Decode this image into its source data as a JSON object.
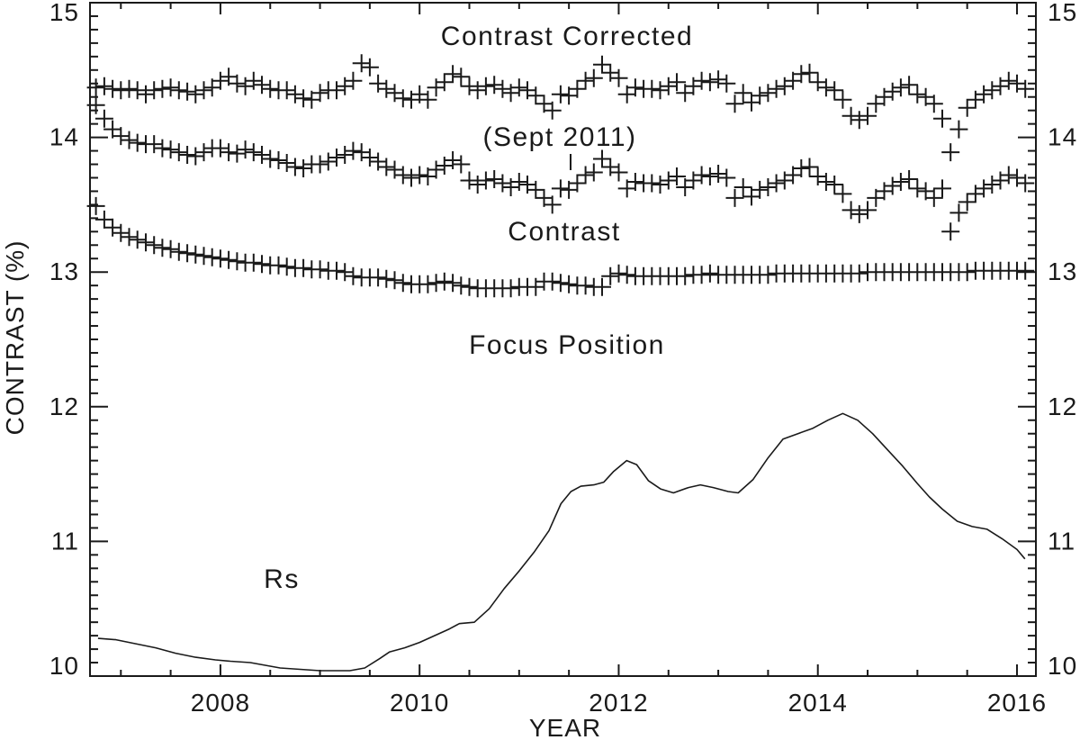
{
  "figure": {
    "background": "#ffffff",
    "line_color": "#1a1a1a"
  },
  "chart_data": {
    "type": "scatter",
    "title": "",
    "xlabel": "YEAR",
    "ylabel": "CONTRAST (%)",
    "x_range": [
      2006.69,
      2016.19
    ],
    "y_range": [
      10,
      15
    ],
    "grid": false,
    "legend_position": "none",
    "x_major_ticks": [
      {
        "v": 2008,
        "label": "2008"
      },
      {
        "v": 2010,
        "label": "2010"
      },
      {
        "v": 2012,
        "label": "2012"
      },
      {
        "v": 2014,
        "label": "2014"
      },
      {
        "v": 2016,
        "label": "2016"
      }
    ],
    "x_minor_step": 0.5,
    "y_major_ticks": [
      {
        "v": 10,
        "label": "10"
      },
      {
        "v": 11,
        "label": "11"
      },
      {
        "v": 12,
        "label": "12"
      },
      {
        "v": 13,
        "label": "13"
      },
      {
        "v": 14,
        "label": "14"
      },
      {
        "v": 15,
        "label": "15"
      }
    ],
    "y_minor_step": 0.1,
    "x_monthly": {
      "start": 2006.75,
      "step": 0.0833333,
      "count": 113
    },
    "series": [
      {
        "name": "Contrast Corrected",
        "marker": "plus",
        "values": [
          14.37,
          14.38,
          14.36,
          14.35,
          14.36,
          14.35,
          14.32,
          14.35,
          14.36,
          14.37,
          14.35,
          14.34,
          14.32,
          14.35,
          14.37,
          14.42,
          14.45,
          14.4,
          14.38,
          14.42,
          14.39,
          14.36,
          14.35,
          14.35,
          14.32,
          14.29,
          14.28,
          14.33,
          14.35,
          14.35,
          14.38,
          14.42,
          14.55,
          14.52,
          14.4,
          14.36,
          14.33,
          14.29,
          14.28,
          14.32,
          14.28,
          14.37,
          14.41,
          14.47,
          14.45,
          14.38,
          14.35,
          14.38,
          14.39,
          14.36,
          14.33,
          14.37,
          14.35,
          14.31,
          14.25,
          14.2,
          14.32,
          14.31,
          14.36,
          14.42,
          14.44,
          14.54,
          14.48,
          14.44,
          14.32,
          14.37,
          14.36,
          14.36,
          14.35,
          14.38,
          14.41,
          14.33,
          14.38,
          14.42,
          14.41,
          14.43,
          14.4,
          14.25,
          14.33,
          14.26,
          14.31,
          14.33,
          14.36,
          14.38,
          14.42,
          14.47,
          14.48,
          14.41,
          14.37,
          14.35,
          14.28,
          14.16,
          14.13,
          14.16,
          14.25,
          14.3,
          14.34,
          14.37,
          14.39,
          14.32,
          14.3,
          14.25,
          14.14,
          13.89,
          14.06,
          14.22,
          14.28,
          14.32,
          14.35,
          14.38,
          14.42,
          14.4,
          14.36
        ]
      },
      {
        "name": "Contrast",
        "marker": "plus",
        "values": [
          14.24,
          14.14,
          14.06,
          14.01,
          13.98,
          13.96,
          13.95,
          13.95,
          13.92,
          13.91,
          13.89,
          13.87,
          13.86,
          13.89,
          13.92,
          13.92,
          13.89,
          13.88,
          13.91,
          13.89,
          13.87,
          13.84,
          13.83,
          13.81,
          13.78,
          13.77,
          13.8,
          13.8,
          13.82,
          13.85,
          13.87,
          13.9,
          13.89,
          13.85,
          13.82,
          13.78,
          13.76,
          13.72,
          13.7,
          13.72,
          13.71,
          13.76,
          13.79,
          13.83,
          13.8,
          13.68,
          13.65,
          13.68,
          13.69,
          13.66,
          13.63,
          13.67,
          13.65,
          13.61,
          13.55,
          13.5,
          13.62,
          13.61,
          13.66,
          13.72,
          13.74,
          13.84,
          13.78,
          13.74,
          13.62,
          13.67,
          13.66,
          13.66,
          13.65,
          13.68,
          13.71,
          13.63,
          13.68,
          13.72,
          13.71,
          13.73,
          13.7,
          13.55,
          13.63,
          13.56,
          13.61,
          13.63,
          13.66,
          13.68,
          13.72,
          13.77,
          13.78,
          13.71,
          13.67,
          13.65,
          13.58,
          13.46,
          13.43,
          13.46,
          13.55,
          13.6,
          13.64,
          13.67,
          13.69,
          13.62,
          13.6,
          13.55,
          13.62,
          13.3,
          13.44,
          13.52,
          13.58,
          13.62,
          13.65,
          13.68,
          13.72,
          13.7,
          13.66
        ]
      },
      {
        "name": "Focus Position",
        "marker": "plus",
        "values": [
          13.49,
          13.39,
          13.33,
          13.29,
          13.26,
          13.24,
          13.22,
          13.2,
          13.18,
          13.17,
          13.15,
          13.14,
          13.13,
          13.12,
          13.11,
          13.1,
          13.09,
          13.08,
          13.07,
          13.07,
          13.06,
          13.05,
          13.05,
          13.04,
          13.03,
          13.03,
          13.02,
          13.02,
          13.01,
          13.01,
          13.0,
          12.97,
          12.96,
          12.96,
          12.96,
          12.95,
          12.94,
          12.92,
          12.91,
          12.91,
          12.91,
          12.92,
          12.93,
          12.92,
          12.9,
          12.89,
          12.88,
          12.88,
          12.88,
          12.88,
          12.88,
          12.89,
          12.89,
          12.89,
          12.93,
          12.93,
          12.92,
          12.91,
          12.9,
          12.9,
          12.89,
          12.89,
          12.97,
          12.99,
          12.98,
          12.97,
          12.97,
          12.97,
          12.97,
          12.97,
          12.97,
          12.97,
          12.98,
          12.98,
          12.99,
          12.98,
          12.98,
          12.98,
          12.98,
          12.98,
          12.98,
          12.98,
          12.99,
          12.99,
          12.99,
          12.99,
          12.99,
          12.99,
          12.99,
          12.99,
          12.99,
          12.99,
          12.99,
          13.0,
          13.0,
          13.0,
          13.0,
          13.0,
          13.0,
          13.0,
          13.0,
          13.0,
          13.0,
          13.0,
          13.0,
          13.0,
          13.01,
          13.01,
          13.01,
          13.01,
          13.01,
          13.01,
          13.01
        ]
      },
      {
        "name": "Rs",
        "marker": "line",
        "x": [
          2006.77,
          2006.95,
          2007.15,
          2007.35,
          2007.55,
          2007.75,
          2007.95,
          2008.1,
          2008.3,
          2008.45,
          2008.6,
          2008.8,
          2009.0,
          2009.15,
          2009.3,
          2009.45,
          2009.6,
          2009.7,
          2009.85,
          2010.0,
          2010.15,
          2010.3,
          2010.4,
          2010.55,
          2010.7,
          2010.85,
          2011.0,
          2011.15,
          2011.3,
          2011.42,
          2011.52,
          2011.62,
          2011.75,
          2011.85,
          2011.95,
          2012.08,
          2012.18,
          2012.3,
          2012.42,
          2012.55,
          2012.7,
          2012.82,
          2012.95,
          2013.1,
          2013.2,
          2013.35,
          2013.5,
          2013.65,
          2013.8,
          2013.95,
          2014.1,
          2014.25,
          2014.4,
          2014.55,
          2014.7,
          2014.85,
          2015.0,
          2015.12,
          2015.25,
          2015.4,
          2015.55,
          2015.7,
          2015.85,
          2016.0,
          2016.08
        ],
        "values": [
          10.28,
          10.27,
          10.24,
          10.21,
          10.17,
          10.14,
          10.12,
          10.11,
          10.1,
          10.08,
          10.06,
          10.05,
          10.04,
          10.04,
          10.04,
          10.06,
          10.13,
          10.18,
          10.21,
          10.25,
          10.3,
          10.35,
          10.39,
          10.4,
          10.5,
          10.65,
          10.78,
          10.92,
          11.08,
          11.28,
          11.37,
          11.41,
          11.42,
          11.44,
          11.52,
          11.6,
          11.57,
          11.45,
          11.39,
          11.36,
          11.4,
          11.42,
          11.4,
          11.37,
          11.36,
          11.46,
          11.62,
          11.76,
          11.8,
          11.84,
          11.9,
          11.95,
          11.9,
          11.8,
          11.68,
          11.56,
          11.43,
          11.33,
          11.24,
          11.15,
          11.11,
          11.09,
          11.02,
          10.94,
          10.87
        ]
      }
    ],
    "annotations": {
      "contrast_corrected": {
        "text": "Contrast Corrected"
      },
      "sept_2011": {
        "text": "(Sept 2011)"
      },
      "contrast": {
        "text": "Contrast"
      },
      "focus_position": {
        "text": "Focus Position"
      },
      "rs": {
        "text": "Rs"
      }
    }
  }
}
